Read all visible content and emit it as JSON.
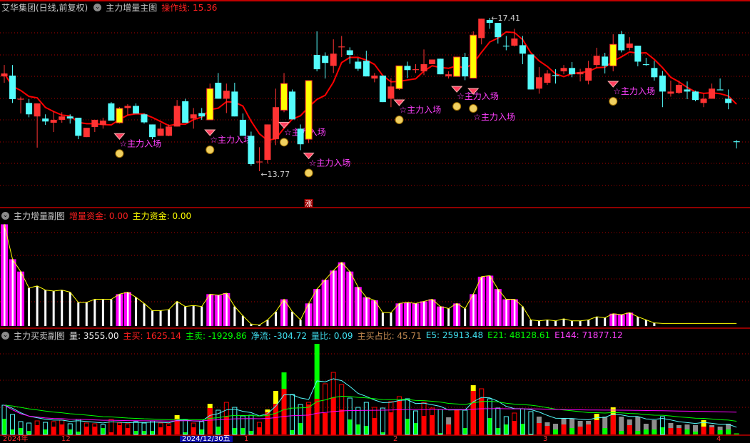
{
  "header": {
    "stock_title": "艾华集团(日线,前复权)",
    "indicator_name": "主力增量主图",
    "operation_line": "操作线: 15.36"
  },
  "mid_panel": {
    "name": "主力增量副图",
    "increment_funds": "增量资金: 0.00",
    "main_funds": "主力资金: 0.00"
  },
  "bottom_panel": {
    "name": "主力买卖副图",
    "volume": "量: 3555.00",
    "main_buy": "主买: 1625.14",
    "main_sell": "主卖: -1929.86",
    "net_flow": "净流: -304.72",
    "volume_ratio": "量比: 0.09",
    "main_buy_ratio": "主买占比: 45.71",
    "e5": "E5: 25913.48",
    "e21": "E21: 48128.61",
    "e144": "E144: 71877.12"
  },
  "axis_labels": [
    "2024年",
    "12",
    "2024/12/30五",
    "1",
    "2",
    "3",
    "4"
  ],
  "colors": {
    "up": "#ff3333",
    "down": "#54fcfc",
    "signal": "#ffff00",
    "ma": "#ff0000",
    "magenta": "#ff00ff",
    "grid": "#b00000",
    "gray": "#8c8c8c",
    "green": "#00ff00"
  },
  "chart_data": [
    {
      "type": "candlestick",
      "panel": "main",
      "ohlc_format": [
        "open",
        "high",
        "low",
        "close"
      ],
      "candles": [
        [
          16.02,
          16.29,
          15.87,
          16.09
        ],
        [
          16.04,
          16.29,
          15.39,
          15.48
        ],
        [
          15.49,
          15.54,
          15.14,
          15.49
        ],
        [
          15.39,
          15.48,
          15.05,
          15.12
        ],
        [
          15.07,
          15.38,
          14.33,
          15.38
        ],
        [
          15.02,
          15.12,
          14.87,
          14.95
        ],
        [
          14.92,
          15.19,
          14.7,
          14.99
        ],
        [
          14.99,
          15.17,
          14.92,
          15.07
        ],
        [
          15.07,
          15.12,
          14.9,
          15.02
        ],
        [
          15.04,
          15.04,
          14.53,
          14.61
        ],
        [
          14.58,
          14.8,
          14.58,
          14.8
        ],
        [
          14.82,
          14.99,
          14.7,
          14.99
        ],
        [
          14.87,
          15.04,
          14.78,
          14.97
        ],
        [
          15.38,
          15.41,
          14.97,
          14.97
        ],
        [
          14.92,
          15.29,
          14.9,
          15.26
        ],
        [
          15.27,
          15.36,
          15.1,
          15.32
        ],
        [
          15.32,
          15.38,
          15.14,
          15.14
        ],
        [
          15.12,
          15.14,
          14.9,
          14.93
        ],
        [
          14.88,
          14.88,
          14.53,
          14.58
        ],
        [
          14.61,
          14.92,
          14.61,
          14.78
        ],
        [
          14.61,
          14.88,
          14.6,
          14.83
        ],
        [
          14.83,
          15.46,
          14.83,
          15.32
        ],
        [
          15.43,
          15.49,
          14.92,
          14.92
        ],
        [
          15.02,
          15.27,
          14.78,
          15.12
        ],
        [
          15.15,
          15.27,
          14.99,
          15.07
        ],
        [
          14.99,
          15.85,
          14.99,
          15.73
        ],
        [
          15.87,
          16.1,
          15.49,
          15.49
        ],
        [
          15.49,
          15.85,
          15.15,
          15.68
        ],
        [
          15.66,
          15.87,
          15.07,
          15.07
        ],
        [
          14.99,
          15.14,
          14.61,
          14.61
        ],
        [
          14.61,
          14.71,
          13.9,
          13.94
        ],
        [
          14.0,
          14.34,
          13.77,
          14.0
        ],
        [
          14.04,
          14.88,
          13.95,
          14.88
        ],
        [
          14.53,
          15.73,
          14.39,
          15.29
        ],
        [
          15.22,
          16.1,
          15.17,
          15.85
        ],
        [
          15.66,
          15.71,
          15.0,
          15.0
        ],
        [
          14.78,
          14.88,
          14.27,
          14.41
        ],
        [
          14.53,
          15.92,
          14.44,
          15.92
        ],
        [
          16.53,
          17.09,
          16.14,
          16.19
        ],
        [
          16.51,
          16.59,
          15.97,
          16.34
        ],
        [
          16.27,
          16.9,
          16.1,
          16.56
        ],
        [
          16.73,
          16.98,
          16.48,
          16.73
        ],
        [
          16.64,
          16.71,
          16.32,
          16.53
        ],
        [
          16.37,
          16.46,
          16.15,
          16.2
        ],
        [
          16.39,
          16.63,
          16.02,
          16.02
        ],
        [
          15.97,
          16.1,
          15.88,
          16.04
        ],
        [
          16.04,
          16.04,
          15.41,
          15.41
        ],
        [
          15.49,
          15.98,
          15.29,
          15.78
        ],
        [
          15.73,
          16.27,
          15.7,
          16.27
        ],
        [
          16.27,
          16.37,
          15.98,
          16.17
        ],
        [
          16.19,
          16.31,
          16.1,
          16.19
        ],
        [
          16.14,
          16.66,
          16.05,
          16.31
        ],
        [
          16.31,
          16.42,
          16.31,
          16.42
        ],
        [
          16.44,
          16.44,
          16.07,
          16.07
        ],
        [
          16.02,
          16.14,
          15.97,
          16.07
        ],
        [
          16.02,
          16.48,
          16.02,
          16.48
        ],
        [
          16.48,
          16.58,
          15.93,
          16.02
        ],
        [
          15.98,
          17.09,
          15.97,
          17.0
        ],
        [
          16.93,
          17.39,
          16.78,
          17.39
        ],
        [
          17.36,
          17.41,
          17.15,
          17.29
        ],
        [
          17.29,
          17.29,
          16.8,
          16.95
        ],
        [
          16.75,
          16.98,
          16.64,
          16.75
        ],
        [
          16.75,
          17.15,
          16.73,
          16.92
        ],
        [
          16.76,
          16.98,
          16.31,
          16.56
        ],
        [
          16.54,
          16.54,
          15.71,
          15.71
        ],
        [
          15.73,
          16.24,
          15.61,
          16.0
        ],
        [
          15.87,
          16.17,
          15.82,
          16.09
        ],
        [
          16.05,
          16.19,
          15.85,
          16.05
        ],
        [
          16.14,
          16.29,
          16.07,
          16.22
        ],
        [
          16.22,
          16.36,
          16.0,
          16.07
        ],
        [
          16.07,
          16.2,
          15.9,
          16.12
        ],
        [
          15.92,
          16.39,
          15.83,
          16.22
        ],
        [
          16.29,
          16.7,
          16.22,
          16.51
        ],
        [
          16.49,
          16.58,
          16.09,
          16.27
        ],
        [
          16.27,
          17.02,
          16.14,
          16.78
        ],
        [
          17.02,
          17.1,
          16.59,
          16.64
        ],
        [
          16.7,
          16.95,
          16.64,
          16.8
        ],
        [
          16.75,
          16.75,
          16.26,
          16.37
        ],
        [
          16.31,
          16.46,
          16.27,
          16.31
        ],
        [
          16.22,
          16.39,
          15.92,
          16.0
        ],
        [
          16.04,
          16.15,
          15.29,
          15.66
        ],
        [
          15.61,
          15.92,
          15.54,
          15.66
        ],
        [
          15.63,
          15.92,
          15.6,
          15.82
        ],
        [
          15.71,
          15.9,
          15.48,
          15.66
        ],
        [
          15.66,
          15.68,
          15.43,
          15.46
        ],
        [
          15.39,
          15.61,
          15.29,
          15.49
        ],
        [
          15.49,
          15.85,
          15.49,
          15.73
        ],
        [
          15.71,
          15.97,
          15.71,
          15.71
        ],
        [
          15.49,
          15.71,
          15.24,
          15.39
        ],
        [
          14.48,
          14.51,
          14.31,
          14.48
        ]
      ],
      "signal_indices": [
        14,
        25,
        34,
        37,
        48,
        55,
        57,
        74
      ],
      "signal_label": "☆主力入场",
      "rise_marker": {
        "index": 37,
        "label": "涨"
      },
      "high_label": {
        "index": 59,
        "text": "←17.41"
      },
      "low_label": {
        "index": 31,
        "text": "←13.77"
      },
      "price_range": [
        13.77,
        17.41
      ]
    },
    {
      "type": "bar",
      "panel": "mid",
      "values": [
        99,
        65,
        53,
        37,
        39,
        35,
        34,
        35,
        33,
        23,
        23,
        26,
        26,
        26,
        31,
        33,
        28,
        22,
        15,
        15,
        16,
        24,
        19,
        20,
        19,
        31,
        30,
        32,
        19,
        10,
        2,
        1,
        6,
        14,
        26,
        14,
        6,
        22,
        36,
        45,
        54,
        62,
        53,
        38,
        28,
        25,
        13,
        13,
        22,
        23,
        22,
        24,
        26,
        19,
        17,
        22,
        17,
        31,
        48,
        49,
        36,
        26,
        26,
        19,
        6,
        5,
        6,
        5,
        7,
        5,
        5,
        6,
        9,
        8,
        12,
        11,
        13,
        9,
        6,
        3
      ],
      "magenta": [
        1,
        1,
        1,
        0,
        0,
        0,
        0,
        0,
        0,
        0,
        0,
        0,
        0,
        0,
        1,
        1,
        0,
        0,
        0,
        0,
        0,
        0,
        0,
        0,
        0,
        1,
        1,
        1,
        0,
        0,
        0,
        0,
        0,
        0,
        1,
        0,
        0,
        1,
        1,
        1,
        1,
        1,
        1,
        1,
        1,
        1,
        0,
        0,
        1,
        1,
        1,
        1,
        1,
        1,
        0,
        1,
        0,
        1,
        1,
        1,
        1,
        1,
        1,
        0,
        0,
        0,
        0,
        0,
        0,
        0,
        0,
        0,
        0,
        0,
        1,
        1,
        1,
        0,
        0,
        0
      ],
      "tail_line_value": 2.5,
      "ylim": [
        0,
        100
      ]
    },
    {
      "type": "bar",
      "panel": "bottom",
      "bar_format": [
        "total_volume_k",
        "main_fill_k",
        "fill_color",
        "outline_style"
      ],
      "bars": [
        [
          102.5,
          55,
          "g",
          "c"
        ],
        [
          70,
          17.5,
          "g",
          "c"
        ],
        [
          45,
          22.5,
          "g",
          "c"
        ],
        [
          40,
          12.5,
          "g",
          "c"
        ],
        [
          47.5,
          32.5,
          "r",
          "r"
        ],
        [
          42.5,
          17.5,
          "g",
          "c"
        ],
        [
          45,
          27.5,
          "r",
          "r"
        ],
        [
          50,
          35,
          "r",
          "r"
        ],
        [
          37.5,
          17.5,
          "g",
          "c"
        ],
        [
          52.5,
          10,
          "g",
          "c"
        ],
        [
          40,
          27.5,
          "r",
          "r"
        ],
        [
          37.5,
          27.5,
          "r",
          "r"
        ],
        [
          35,
          22.5,
          "g",
          "c"
        ],
        [
          52.5,
          7.5,
          "r",
          "r"
        ],
        [
          40,
          32.5,
          "r",
          "r"
        ],
        [
          37.5,
          22.5,
          "r",
          "r"
        ],
        [
          45,
          12.5,
          "g",
          "c"
        ],
        [
          40,
          12.5,
          "g",
          "c"
        ],
        [
          47.5,
          12.5,
          "g",
          "c"
        ],
        [
          40,
          25,
          "r",
          "r"
        ],
        [
          37.5,
          30,
          "r",
          "r"
        ],
        [
          67.5,
          55,
          "r",
          "y"
        ],
        [
          52.5,
          7.5,
          "g",
          "c"
        ],
        [
          40,
          25,
          "r",
          "r"
        ],
        [
          45,
          17.5,
          "g",
          "c"
        ],
        [
          107.5,
          92.5,
          "r",
          "y"
        ],
        [
          85,
          27.5,
          "g",
          "c"
        ],
        [
          112.5,
          62.5,
          "r",
          "r"
        ],
        [
          95,
          22.5,
          "g",
          "c"
        ],
        [
          65,
          22.5,
          "g",
          "c"
        ],
        [
          67.5,
          12.5,
          "g",
          "c"
        ],
        [
          42.5,
          25,
          "r",
          "r"
        ],
        [
          87.5,
          77.5,
          "r",
          "y"
        ],
        [
          152.5,
          107.5,
          "r",
          "y"
        ],
        [
          217.5,
          160,
          "r",
          "g"
        ],
        [
          140,
          15,
          "g",
          "c"
        ],
        [
          105,
          40,
          "g",
          "c"
        ],
        [
          112.5,
          105,
          "r",
          "r"
        ],
        [
          317.5,
          125,
          "r",
          "g"
        ],
        [
          177.5,
          75,
          "r",
          "r"
        ],
        [
          217.5,
          130,
          "r",
          "r"
        ],
        [
          175,
          87.5,
          "r",
          "r"
        ],
        [
          127.5,
          52.5,
          "g",
          "c"
        ],
        [
          95,
          35,
          "g",
          "c"
        ],
        [
          112.5,
          30,
          "g",
          "c"
        ],
        [
          95,
          57.5,
          "r",
          "r"
        ],
        [
          92.5,
          7.5,
          "g",
          "c"
        ],
        [
          115,
          77.5,
          "r",
          "r"
        ],
        [
          132.5,
          117.5,
          "r",
          "r"
        ],
        [
          125,
          55,
          "g",
          "c"
        ],
        [
          82.5,
          40,
          "g",
          "c"
        ],
        [
          112.5,
          65,
          "r",
          "r"
        ],
        [
          92.5,
          67.5,
          "r",
          "r"
        ],
        [
          87.5,
          5,
          "g",
          "c"
        ],
        [
          60,
          35,
          "r",
          "gray"
        ],
        [
          87.5,
          87.5,
          "r",
          "r"
        ],
        [
          85,
          22.5,
          "g",
          "c"
        ],
        [
          172.5,
          152.5,
          "r",
          "y"
        ],
        [
          160,
          127.5,
          "r",
          "r"
        ],
        [
          125,
          57.5,
          "g",
          "c"
        ],
        [
          92.5,
          22.5,
          "g",
          "c"
        ],
        [
          62.5,
          35,
          "g",
          "c"
        ],
        [
          75,
          47.5,
          "r",
          "r"
        ],
        [
          90,
          37.5,
          "g",
          "c"
        ],
        [
          80,
          2.5,
          "g",
          "c"
        ],
        [
          62.5,
          40,
          "r",
          "gray"
        ],
        [
          42.5,
          30,
          "r",
          "gray"
        ],
        [
          37.5,
          17.5,
          "g",
          "gray"
        ],
        [
          55,
          35,
          "r",
          "gray"
        ],
        [
          55,
          22.5,
          "g",
          "gray"
        ],
        [
          47.5,
          27.5,
          "r",
          "gray"
        ],
        [
          47.5,
          35,
          "r",
          "gray"
        ],
        [
          72.5,
          50,
          "r",
          "y"
        ],
        [
          62.5,
          22.5,
          "g",
          "gray"
        ],
        [
          95,
          67.5,
          "r",
          "y"
        ],
        [
          62.5,
          12.5,
          "g",
          "gray"
        ],
        [
          52.5,
          32.5,
          "r",
          "gray"
        ],
        [
          62.5,
          12.5,
          "g",
          "gray"
        ],
        [
          37.5,
          17.5,
          "g",
          "gray"
        ],
        [
          50,
          17.5,
          "g",
          "gray"
        ],
        [
          62.5,
          25,
          "g",
          "c"
        ],
        [
          40,
          22.5,
          "r",
          "gray"
        ],
        [
          32.5,
          22.5,
          "r",
          "gray"
        ],
        [
          35,
          17.5,
          "g",
          "gray"
        ],
        [
          32.5,
          10,
          "g",
          "gray"
        ],
        [
          50,
          27.5,
          "r",
          "y"
        ],
        [
          32.5,
          25,
          "r",
          "gray"
        ],
        [
          27.5,
          15,
          "g",
          "gray"
        ],
        [
          37.5,
          17.5,
          "g",
          "gray"
        ],
        [
          3.6,
          3.6,
          "g",
          "g"
        ]
      ],
      "lines": [
        "E5",
        "E21",
        "E144"
      ],
      "ylim_k": [
        0,
        327.5
      ]
    }
  ]
}
